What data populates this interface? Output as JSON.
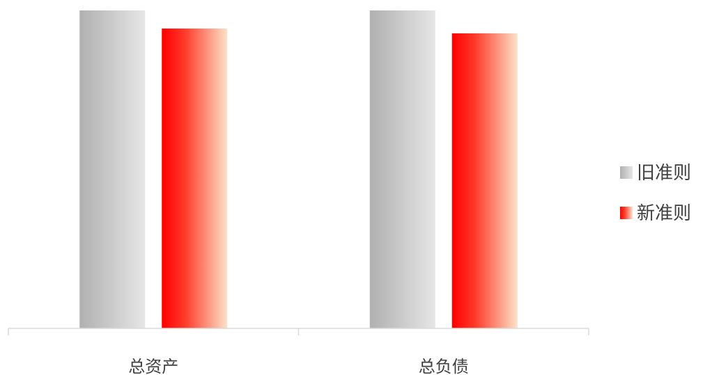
{
  "chart_data": {
    "type": "bar",
    "categories": [
      "总资产",
      "总负债"
    ],
    "series": [
      {
        "name": "旧准则",
        "values": [
          100,
          100
        ]
      },
      {
        "name": "新准则",
        "values": [
          94.3,
          92.8
        ]
      }
    ],
    "ylim": [
      0,
      100
    ],
    "grid": false,
    "legend_position": "right",
    "colors": {
      "旧准则": [
        "#b0b0b0",
        "#e6e6e6"
      ],
      "新准则": [
        "#ff0000",
        "#fbe2c8"
      ]
    },
    "axis_color": "#d9d9d9"
  }
}
